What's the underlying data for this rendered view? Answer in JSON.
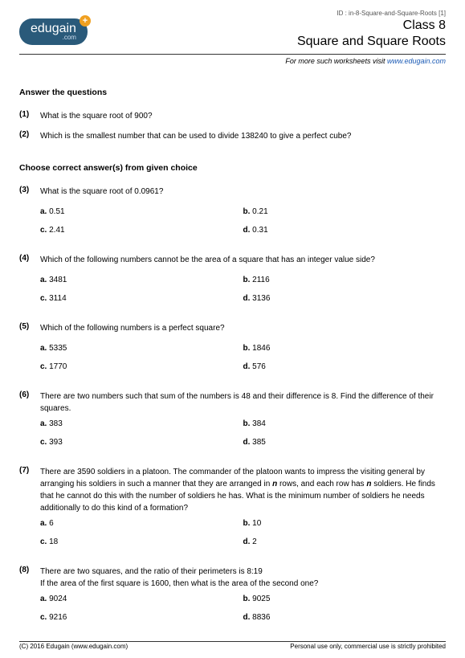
{
  "doc_id": "ID : in-8-Square-and-Square-Roots [1]",
  "logo_text": "edugain",
  "logo_sub": ".com",
  "class_label": "Class 8",
  "topic": "Square and Square Roots",
  "more_prefix": "For more such worksheets visit ",
  "more_link": "www.edugain.com",
  "section1_head": "Answer the questions",
  "questions1": [
    {
      "n": "(1)",
      "t": "What is the square root of 900?"
    },
    {
      "n": "(2)",
      "t": "Which is the smallest number that can be used to divide 138240 to give a perfect cube?"
    }
  ],
  "section2_head": "Choose correct answer(s) from given choice",
  "questions2": [
    {
      "n": "(3)",
      "t": "What is the square root of 0.0961?",
      "opts": [
        {
          "l": "a.",
          "v": "0.51"
        },
        {
          "l": "b.",
          "v": "0.21"
        },
        {
          "l": "c.",
          "v": "2.41"
        },
        {
          "l": "d.",
          "v": "0.31"
        }
      ],
      "gap": true
    },
    {
      "n": "(4)",
      "t": "Which of the following numbers cannot be the area of a square that has an integer value side?",
      "opts": [
        {
          "l": "a.",
          "v": "3481"
        },
        {
          "l": "b.",
          "v": "2116"
        },
        {
          "l": "c.",
          "v": "3114"
        },
        {
          "l": "d.",
          "v": "3136"
        }
      ],
      "gap": true
    },
    {
      "n": "(5)",
      "t": "Which of the following numbers is a perfect square?",
      "opts": [
        {
          "l": "a.",
          "v": "5335"
        },
        {
          "l": "b.",
          "v": "1846"
        },
        {
          "l": "c.",
          "v": "1770"
        },
        {
          "l": "d.",
          "v": "576"
        }
      ],
      "gap": true
    },
    {
      "n": "(6)",
      "t": "There are two numbers such that sum of the numbers is 48 and their difference is 8. Find the difference of their squares.",
      "opts": [
        {
          "l": "a.",
          "v": "383"
        },
        {
          "l": "b.",
          "v": "384"
        },
        {
          "l": "c.",
          "v": "393"
        },
        {
          "l": "d.",
          "v": "385"
        }
      ],
      "gap": false
    },
    {
      "n": "(7)",
      "t": "There are 3590 soldiers in a platoon. The commander of the platoon wants to impress the visiting general by arranging his soldiers in such a manner that they are arranged in <span class='bn'>n</span> rows, and each row has <span class='bn'>n</span> soldiers. He finds that he cannot do this with the number of soldiers he has. What is the minimum number of soldiers he needs additionally to do this kind of a formation?",
      "opts": [
        {
          "l": "a.",
          "v": "6"
        },
        {
          "l": "b.",
          "v": "10"
        },
        {
          "l": "c.",
          "v": "18"
        },
        {
          "l": "d.",
          "v": "2"
        }
      ],
      "gap": false,
      "html": true
    },
    {
      "n": "(8)",
      "t": "There are two squares, and the ratio of their perimeters is 8:19<br>If the area of the first square is 1600, then what is the area of the second one?",
      "opts": [
        {
          "l": "a.",
          "v": "9024"
        },
        {
          "l": "b.",
          "v": "9025"
        },
        {
          "l": "c.",
          "v": "9216"
        },
        {
          "l": "d.",
          "v": "8836"
        }
      ],
      "gap": false,
      "html": true
    }
  ],
  "footer_left": "(C) 2016 Edugain (www.edugain.com)",
  "footer_right": "Personal use only, commercial use is strictly prohibited"
}
